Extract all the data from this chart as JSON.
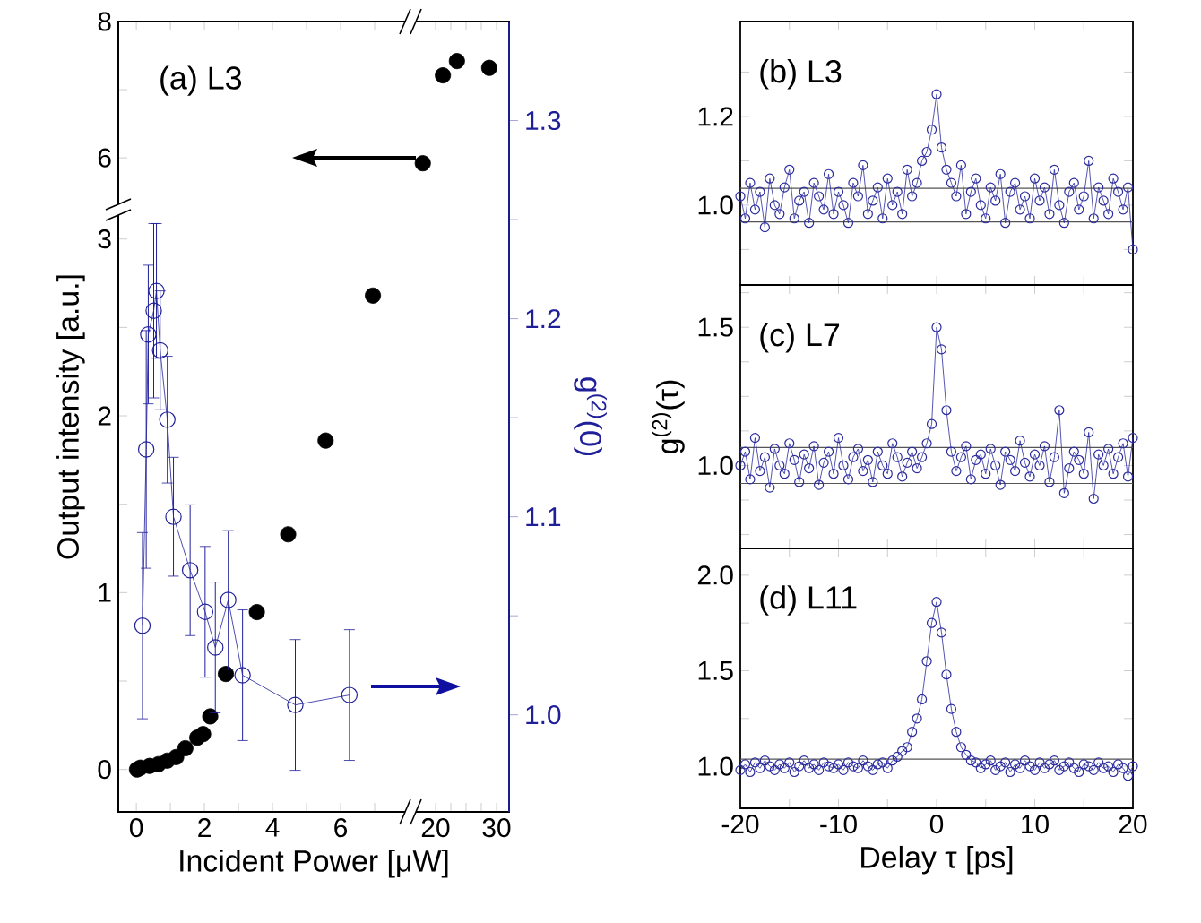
{
  "chart_data": [
    {
      "type": "scatter",
      "title": "(a) L3",
      "xlabel": "Incident Power [μW]",
      "ylabel": "Output intensity [a.u.]",
      "y2label": "g$^{(2)}$(0)",
      "marker": "circle",
      "series": [
        {
          "type": "scatter",
          "x": [
            0.02,
            0.12,
            0.39,
            0.65,
            0.91,
            1.17,
            1.44,
            1.79,
            1.96,
            2.17,
            2.63,
            3.54,
            4.46,
            5.56,
            6.95
          ],
          "values": [
            0.0,
            0.01,
            0.02,
            0.03,
            0.05,
            0.07,
            0.12,
            0.18,
            0.2,
            0.3,
            0.54,
            0.89,
            1.33,
            1.86,
            2.68
          ],
          "color": "#000000"
        },
        {
          "type": "line",
          "axis": "y2",
          "x": [
            0.18,
            0.29,
            0.35,
            0.51,
            0.59,
            0.7,
            0.91,
            1.09,
            1.58,
            2.02,
            2.32,
            2.7,
            3.12,
            4.67,
            6.26
          ],
          "values": [
            1.045,
            1.134,
            1.192,
            1.204,
            1.214,
            1.184,
            1.149,
            1.1,
            1.073,
            1.052,
            1.034,
            1.058,
            1.02,
            1.005,
            1.01
          ],
          "errors": [
            0.047,
            0.06,
            0.035,
            0.044,
            0.034,
            0.03,
            0.032,
            0.03,
            0.033,
            0.033,
            0.033,
            0.035,
            0.033,
            0.033,
            0.033
          ],
          "color": "#1f1f9a"
        }
      ],
      "xlim": [
        -0.53,
        10.95
      ],
      "ylim": [
        -0.24,
        4.23
      ],
      "y2lim": [
        0.951,
        1.35
      ],
      "xticks": [
        0,
        {
          "value": 1,
          "label": null
        },
        2,
        {
          "value": 3,
          "label": null
        },
        4,
        {
          "value": 5,
          "label": null
        },
        6,
        {
          "value": 7,
          "label": null
        }
      ],
      "yticks": [
        0,
        {
          "value": 0.5,
          "label": null
        },
        1,
        {
          "value": 1.5,
          "label": null
        },
        2,
        {
          "value": 2.5,
          "label": null
        },
        3
      ],
      "y2ticks": [
        {
          "value": 1.0,
          "label": "1.0"
        },
        {
          "value": 1.05,
          "label": null
        },
        {
          "value": 1.1,
          "label": "1.1"
        },
        {
          "value": 1.15,
          "label": null
        },
        {
          "value": 1.2,
          "label": "1.2"
        },
        {
          "value": 1.25,
          "label": null
        },
        {
          "value": 1.3,
          "label": "1.3"
        }
      ]
    },
    {
      "type": "scatter",
      "marker": "circle",
      "x": [
        17.9,
        21.2,
        23.5,
        28.8
      ],
      "values": [
        5.92,
        7.21,
        7.42,
        7.32
      ],
      "color": "#000000",
      "xlim": [
        -32.06,
        32.06
      ],
      "ylim": [
        -3.6,
        8
      ],
      "xticks": [
        20,
        {
          "value": 22.5,
          "label": null
        },
        {
          "value": 25,
          "label": null
        },
        {
          "value": 27.5,
          "label": null
        },
        30
      ],
      "yticks": [
        6,
        {
          "value": 7,
          "label": null
        },
        8
      ]
    },
    {
      "type": "line",
      "title": "(b) L3",
      "x": [
        -20,
        -19.5,
        -19,
        -18.5,
        -18,
        -17.5,
        -17,
        -16.5,
        -16,
        -15.5,
        -15,
        -14.5,
        -14,
        -13.5,
        -13,
        -12.5,
        -12,
        -11.5,
        -11,
        -10.5,
        -10,
        -9.5,
        -9,
        -8.5,
        -8,
        -7.5,
        -7,
        -6.5,
        -6,
        -5.5,
        -5,
        -4.5,
        -4,
        -3.5,
        -3,
        -2.5,
        -2,
        -1.5,
        -1,
        -0.5,
        0,
        0.5,
        1,
        1.5,
        2,
        2.5,
        3,
        3.5,
        4,
        4.5,
        5,
        5.5,
        6,
        6.5,
        7,
        7.5,
        8,
        8.5,
        9,
        9.5,
        10,
        10.5,
        11,
        11.5,
        12,
        12.5,
        13,
        13.5,
        14,
        14.5,
        15,
        15.5,
        16,
        16.5,
        17,
        17.5,
        18,
        18.5,
        19,
        19.5,
        20
      ],
      "values": [
        1.02,
        0.97,
        1.05,
        0.99,
        1.03,
        0.95,
        1.06,
        1.0,
        0.98,
        1.04,
        1.08,
        0.97,
        1.01,
        1.03,
        0.96,
        1.05,
        1.02,
        0.99,
        1.07,
        0.98,
        1.03,
        1.0,
        0.96,
        1.05,
        1.02,
        1.09,
        0.98,
        1.01,
        1.04,
        0.97,
        1.06,
        1.0,
        1.03,
        0.98,
        1.08,
        1.02,
        1.05,
        1.1,
        1.12,
        1.17,
        1.25,
        1.13,
        1.08,
        1.05,
        1.02,
        1.09,
        0.98,
        1.03,
        1.06,
        1.0,
        0.97,
        1.04,
        1.01,
        1.07,
        0.96,
        1.03,
        1.05,
        0.99,
        1.02,
        0.97,
        1.06,
        1.01,
        1.04,
        0.98,
        1.08,
        1.0,
        0.96,
        1.03,
        1.05,
        0.99,
        1.02,
        1.1,
        0.97,
        1.04,
        1.01,
        0.98,
        1.06,
        1.03,
        0.99,
        1.04,
        0.9
      ],
      "color": "#2b2b9e",
      "marker": "circle",
      "xlim": [
        -20,
        20
      ],
      "ylim": [
        0.82,
        1.414
      ],
      "xticks": [
        {
          "value": -20,
          "label": null
        },
        {
          "value": -15,
          "label": null
        },
        {
          "value": -10,
          "label": null
        },
        {
          "value": -5,
          "label": null
        },
        {
          "value": 0,
          "label": null
        },
        {
          "value": 5,
          "label": null
        },
        {
          "value": 10,
          "label": null
        },
        {
          "value": 15,
          "label": null
        },
        {
          "value": 20,
          "label": null
        }
      ],
      "yticks": [
        {
          "value": 0.9,
          "label": null
        },
        {
          "value": 1.0,
          "label": "1.0"
        },
        {
          "value": 1.1,
          "label": null
        },
        {
          "value": 1.2,
          "label": "1.2"
        },
        {
          "value": 1.3,
          "label": null
        }
      ],
      "tick_labels": "y",
      "ref_lines": [
        {
          "axis": "y",
          "value": 0.962,
          "color": "#555555"
        },
        {
          "axis": "y",
          "value": 1.038,
          "color": "#555555"
        }
      ]
    },
    {
      "type": "line",
      "title": "(c) L7",
      "ylabel": "g$^{(2)}$(τ)",
      "x": [
        -20,
        -19.5,
        -19,
        -18.5,
        -18,
        -17.5,
        -17,
        -16.5,
        -16,
        -15.5,
        -15,
        -14.5,
        -14,
        -13.5,
        -13,
        -12.5,
        -12,
        -11.5,
        -11,
        -10.5,
        -10,
        -9.5,
        -9,
        -8.5,
        -8,
        -7.5,
        -7,
        -6.5,
        -6,
        -5.5,
        -5,
        -4.5,
        -4,
        -3.5,
        -3,
        -2.5,
        -2,
        -1.5,
        -1,
        -0.5,
        0,
        0.5,
        1,
        1.5,
        2,
        2.5,
        3,
        3.5,
        4,
        4.5,
        5,
        5.5,
        6,
        6.5,
        7,
        7.5,
        8,
        8.5,
        9,
        9.5,
        10,
        10.5,
        11,
        11.5,
        12,
        12.5,
        13,
        13.5,
        14,
        14.5,
        15,
        15.5,
        16,
        16.5,
        17,
        17.5,
        18,
        18.5,
        19,
        19.5,
        20
      ],
      "values": [
        1.0,
        1.05,
        0.95,
        1.1,
        0.98,
        1.03,
        0.92,
        1.06,
        1.0,
        0.97,
        1.08,
        1.02,
        0.94,
        1.04,
        0.99,
        1.07,
        0.93,
        1.01,
        1.05,
        0.97,
        1.1,
        1.0,
        0.95,
        1.03,
        1.06,
        0.98,
        1.02,
        0.94,
        1.05,
        1.0,
        0.97,
        1.08,
        1.03,
        0.96,
        1.01,
        1.05,
        0.99,
        1.03,
        1.08,
        1.15,
        1.5,
        1.42,
        1.2,
        1.05,
        0.98,
        1.03,
        1.07,
        0.95,
        1.02,
        1.04,
        0.97,
        1.06,
        1.0,
        0.93,
        1.05,
        1.02,
        0.98,
        1.09,
        1.01,
        0.96,
        1.04,
        1.0,
        1.07,
        0.94,
        1.03,
        1.2,
        0.9,
        0.99,
        1.05,
        1.02,
        0.97,
        1.12,
        0.88,
        1.04,
        1.0,
        1.06,
        0.97,
        1.03,
        1.08,
        0.96,
        1.1
      ],
      "color": "#2b2b9e",
      "marker": "circle",
      "xlim": [
        -20,
        20
      ],
      "ylim": [
        0.7,
        1.653
      ],
      "xticks": [
        {
          "value": -20,
          "label": null
        },
        {
          "value": -15,
          "label": null
        },
        {
          "value": -10,
          "label": null
        },
        {
          "value": -5,
          "label": null
        },
        {
          "value": 0,
          "label": null
        },
        {
          "value": 5,
          "label": null
        },
        {
          "value": 10,
          "label": null
        },
        {
          "value": 15,
          "label": null
        },
        {
          "value": 20,
          "label": null
        }
      ],
      "yticks": [
        {
          "value": 0.75,
          "label": null
        },
        {
          "value": 0.875,
          "label": null
        },
        {
          "value": 1.0,
          "label": "1.0"
        },
        {
          "value": 1.125,
          "label": null
        },
        {
          "value": 1.25,
          "label": null
        },
        {
          "value": 1.375,
          "label": null
        },
        1.5,
        {
          "value": 1.625,
          "label": null
        }
      ],
      "tick_labels": "y",
      "ref_lines": [
        {
          "axis": "y",
          "value": 0.935,
          "color": "#555555"
        },
        {
          "axis": "y",
          "value": 1.065,
          "color": "#555555"
        }
      ]
    },
    {
      "type": "line",
      "title": "(d) L11",
      "xlabel": "Delay τ [ps]",
      "x": [
        -20,
        -19.5,
        -19,
        -18.5,
        -18,
        -17.5,
        -17,
        -16.5,
        -16,
        -15.5,
        -15,
        -14.5,
        -14,
        -13.5,
        -13,
        -12.5,
        -12,
        -11.5,
        -11,
        -10.5,
        -10,
        -9.5,
        -9,
        -8.5,
        -8,
        -7.5,
        -7,
        -6.5,
        -6,
        -5.5,
        -5,
        -4.5,
        -4,
        -3.5,
        -3,
        -2.5,
        -2,
        -1.5,
        -1,
        -0.5,
        0,
        0.5,
        1,
        1.5,
        2,
        2.5,
        3,
        3.5,
        4,
        4.5,
        5,
        5.5,
        6,
        6.5,
        7,
        7.5,
        8,
        8.5,
        9,
        9.5,
        10,
        10.5,
        11,
        11.5,
        12,
        12.5,
        13,
        13.5,
        14,
        14.5,
        15,
        15.5,
        16,
        16.5,
        17,
        17.5,
        18,
        18.5,
        19,
        19.5,
        20
      ],
      "values": [
        0.98,
        1.01,
        0.97,
        1.02,
        0.99,
        1.03,
        1.0,
        0.98,
        1.01,
        0.99,
        1.02,
        0.97,
        1.0,
        1.03,
        0.99,
        1.01,
        0.98,
        1.02,
        1.0,
        0.99,
        1.01,
        0.98,
        1.02,
        1.0,
        0.99,
        1.03,
        1.0,
        0.98,
        1.01,
        1.02,
        0.99,
        1.03,
        1.05,
        1.08,
        1.1,
        1.18,
        1.25,
        1.35,
        1.55,
        1.75,
        1.86,
        1.7,
        1.48,
        1.3,
        1.18,
        1.1,
        1.06,
        1.03,
        1.02,
        0.99,
        1.01,
        1.03,
        0.98,
        1.0,
        1.02,
        0.97,
        1.01,
        0.99,
        1.03,
        1.0,
        0.98,
        1.02,
        0.99,
        1.01,
        1.03,
        0.98,
        1.0,
        1.02,
        0.99,
        0.97,
        1.01,
        1.0,
        0.98,
        1.02,
        0.99,
        1.0,
        0.97,
        1.01,
        0.99,
        0.95,
        1.0
      ],
      "color": "#2b2b9e",
      "marker": "circle",
      "xlim": [
        -20,
        20
      ],
      "ylim": [
        0.78,
        2.14
      ],
      "xticks": [
        -20,
        {
          "value": -15,
          "label": null
        },
        -10,
        {
          "value": -5,
          "label": null
        },
        0,
        {
          "value": 5,
          "label": null
        },
        10,
        {
          "value": 15,
          "label": null
        },
        20
      ],
      "yticks": [
        {
          "value": 1.0,
          "label": "1.0"
        },
        {
          "value": 1.25,
          "label": null
        },
        1.5,
        {
          "value": 1.75,
          "label": null
        },
        {
          "value": 2.0,
          "label": "2.0"
        }
      ],
      "ref_lines": [
        {
          "axis": "y",
          "value": 0.97,
          "color": "#555555"
        },
        {
          "axis": "y",
          "value": 1.037,
          "color": "#555555"
        }
      ]
    }
  ]
}
